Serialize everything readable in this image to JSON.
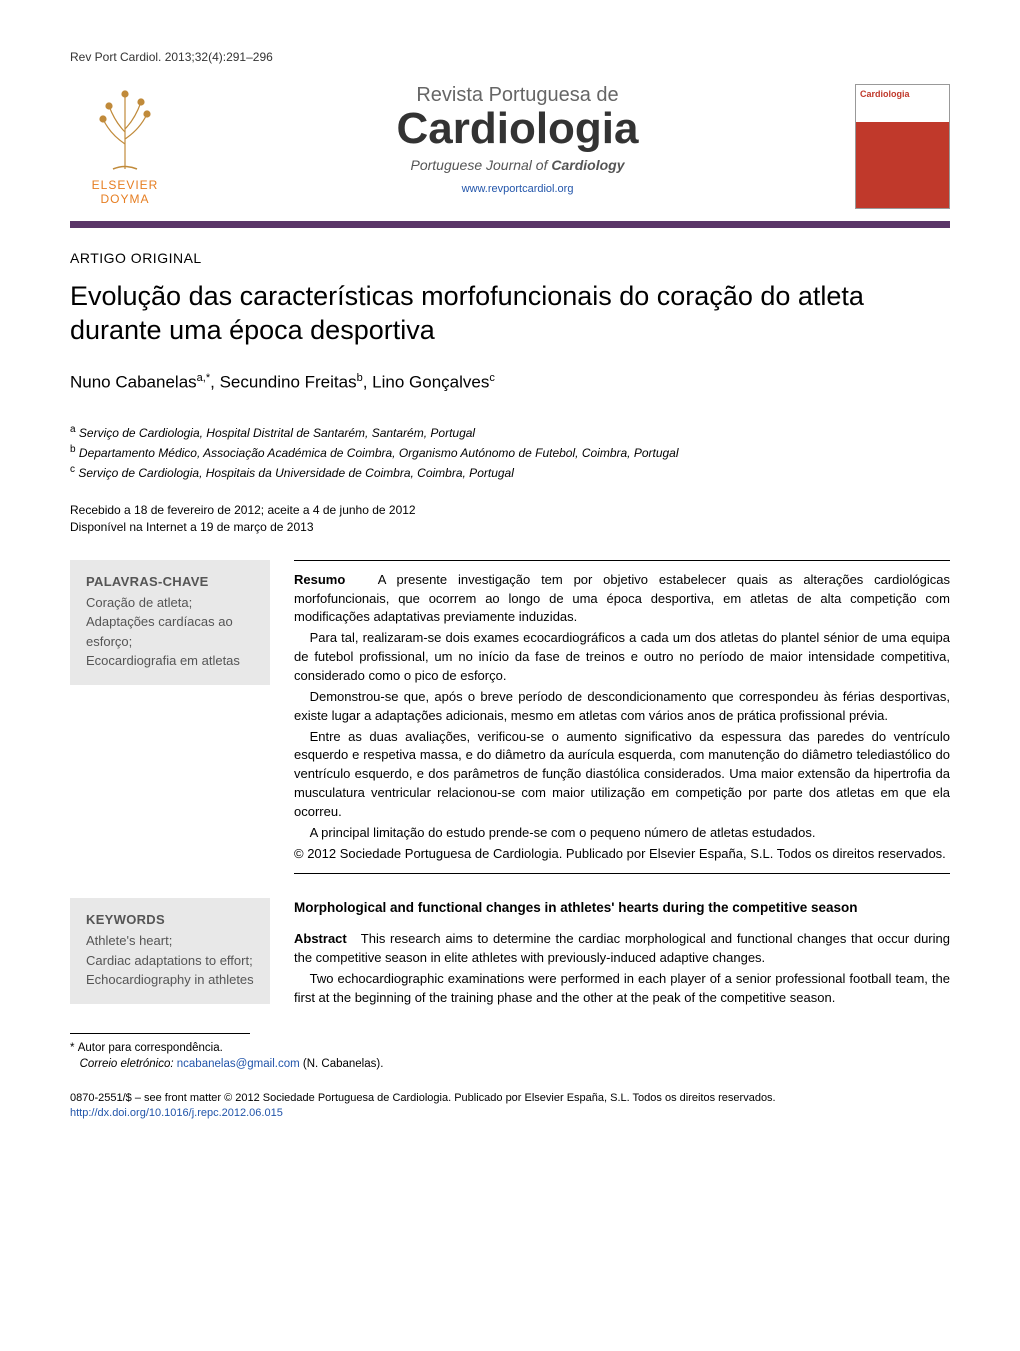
{
  "citation": "Rev Port Cardiol. 2013;32(4):291–296",
  "publisher": {
    "name_line1": "ELSEVIER",
    "name_line2": "DOYMA",
    "logo_color": "#e67e22"
  },
  "journal": {
    "super": "Revista Portuguesa de",
    "main": "Cardiologia",
    "sub_prefix": "Portuguese Journal of ",
    "sub_strong": "Cardiology",
    "url": "www.revportcardiol.org",
    "cover_title": "Cardiologia"
  },
  "colors": {
    "bar": "#5a3568",
    "link": "#2255aa",
    "kw_bg": "#e8e8e8"
  },
  "article": {
    "type": "ARTIGO ORIGINAL",
    "title": "Evolução das características morfofuncionais do coração do atleta durante uma época desportiva",
    "authors": [
      {
        "name": "Nuno Cabanelas",
        "marks": "a,*"
      },
      {
        "name": "Secundino Freitas",
        "marks": "b"
      },
      {
        "name": "Lino Gonçalves",
        "marks": "c"
      }
    ],
    "affiliations": [
      {
        "mark": "a",
        "text": "Serviço de Cardiologia, Hospital Distrital de Santarém, Santarém, Portugal"
      },
      {
        "mark": "b",
        "text": "Departamento Médico, Associação Académica de Coimbra, Organismo Autónomo de Futebol, Coimbra, Portugal"
      },
      {
        "mark": "c",
        "text": "Serviço de Cardiologia, Hospitais da Universidade de Coimbra, Coimbra, Portugal"
      }
    ],
    "history_line1": "Recebido a 18 de fevereiro de 2012; aceite a 4 de junho de 2012",
    "history_line2": "Disponível na Internet a 19 de março de 2013"
  },
  "abstract_pt": {
    "kw_heading": "PALAVRAS-CHAVE",
    "keywords": "Coração de atleta;\nAdaptações cardíacas ao esforço;\nEcocardiografia em atletas",
    "label": "Resumo",
    "paragraphs": [
      "A presente investigação tem por objetivo estabelecer quais as alterações cardiológicas morfofuncionais, que ocorrem ao longo de uma época desportiva, em atletas de alta competição com modificações adaptativas previamente induzidas.",
      "Para tal, realizaram-se dois exames ecocardiográficos a cada um dos atletas do plantel sénior de uma equipa de futebol profissional, um no início da fase de treinos e outro no período de maior intensidade competitiva, considerado como o pico de esforço.",
      "Demonstrou-se que, após o breve período de descondicionamento que correspondeu às férias desportivas, existe lugar a adaptações adicionais, mesmo em atletas com vários anos de prática profissional prévia.",
      "Entre as duas avaliações, verificou-se o aumento significativo da espessura das paredes do ventrículo esquerdo e respetiva massa, e do diâmetro da aurícula esquerda, com manutenção do diâmetro telediastólico do ventrículo esquerdo, e dos parâmetros de função diastólica considerados. Uma maior extensão da hipertrofia da musculatura ventricular relacionou-se com maior utilização em competição por parte dos atletas em que ela ocorreu.",
      "A principal limitação do estudo prende-se com o pequeno número de atletas estudados."
    ],
    "copyright": "© 2012 Sociedade Portuguesa de Cardiologia. Publicado por Elsevier España, S.L. Todos os direitos reservados."
  },
  "abstract_en": {
    "kw_heading": "KEYWORDS",
    "keywords": "Athlete's heart;\nCardiac adaptations to effort;\nEchocardiography in athletes",
    "title": "Morphological and functional changes in athletes' hearts during the competitive season",
    "label": "Abstract",
    "paragraphs": [
      "This research aims to determine the cardiac morphological and functional changes that occur during the competitive season in elite athletes with previously-induced adaptive changes.",
      "Two echocardiographic examinations were performed in each player of a senior professional football team, the first at the beginning of the training phase and the other at the peak of the competitive season."
    ]
  },
  "footnotes": {
    "corr_mark": "*",
    "corr_text": "Autor para correspondência.",
    "email_label": "Correio eletrónico:",
    "email": "ncabanelas@gmail.com",
    "email_attr": " (N. Cabanelas)."
  },
  "footer": {
    "issn_line": "0870-2551/$ – see front matter © 2012 Sociedade Portuguesa de Cardiologia. Publicado por Elsevier España, S.L. Todos os direitos reservados.",
    "doi": "http://dx.doi.org/10.1016/j.repc.2012.06.015"
  }
}
